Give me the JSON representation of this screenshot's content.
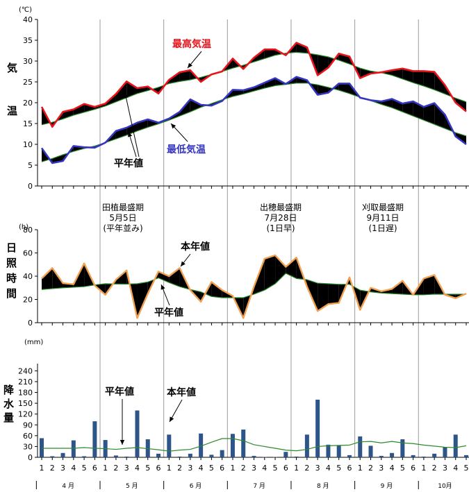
{
  "chart_data": [
    {
      "type": "line",
      "unit_label": "(℃)",
      "ylabel": "気温",
      "ylim": [
        0,
        40
      ],
      "yticks": [
        0,
        5,
        10,
        15,
        20,
        25,
        30,
        35,
        40
      ],
      "series": [
        {
          "name": "最高気温",
          "role": "actual",
          "color": "#e8141c",
          "values": [
            19,
            14.2,
            17.8,
            18.4,
            19.7,
            19,
            19.8,
            22.1,
            25.1,
            23.5,
            23.9,
            22.2,
            25.5,
            27.3,
            27.8,
            25,
            26.8,
            27.5,
            30.6,
            28.1,
            30.8,
            32.8,
            32.8,
            31.4,
            34.4,
            33.3,
            26.6,
            28.4,
            31.8,
            31.1,
            25.9,
            27,
            27.3,
            27.8,
            28.2,
            27.6,
            27.6,
            27.4,
            24.2,
            20,
            17.9
          ]
        },
        {
          "name": "",
          "role": "normal",
          "color": "#2a8a2a",
          "values": [
            14.7,
            15.3,
            16.1,
            17,
            17.7,
            18.4,
            19.2,
            20.2,
            21.2,
            22.2,
            22.9,
            23.7,
            24.6,
            25.1,
            25.5,
            26.1,
            26.8,
            27.5,
            28.3,
            29,
            29.8,
            30.6,
            31.4,
            31.9,
            32.1,
            31.9,
            31.5,
            31,
            30.2,
            29.3,
            28.3,
            27.6,
            27.2,
            26.6,
            25.7,
            24.8,
            24,
            23.1,
            22.1,
            21.1,
            20.2
          ]
        },
        {
          "name": "最低気温",
          "role": "actual",
          "color": "#3535c0",
          "values": [
            9.1,
            5.5,
            6,
            9.6,
            9.3,
            9.2,
            10.4,
            13.2,
            14,
            15.2,
            16,
            15.2,
            16.2,
            17.8,
            20.8,
            19.5,
            19.3,
            20.4,
            23.1,
            23,
            23.7,
            24.8,
            25.9,
            24.5,
            26.2,
            25.4,
            21.9,
            22.4,
            24.6,
            24.6,
            21.2,
            20.6,
            20.3,
            20.9,
            19.8,
            20.3,
            19,
            19.9,
            17.1,
            11.9,
            10
          ]
        },
        {
          "name": "",
          "role": "normal",
          "color": "#2a8a2a",
          "values": [
            5.8,
            6.6,
            7.5,
            8.3,
            9,
            9.6,
            10.4,
            11.3,
            12.2,
            13.2,
            14.1,
            14.9,
            15.8,
            16.8,
            17.8,
            18.9,
            19.8,
            20.7,
            21.5,
            22.1,
            22.8,
            23.5,
            24.1,
            24.4,
            24.7,
            24.7,
            24.3,
            23.7,
            23,
            22.2,
            21.3,
            20.5,
            19.6,
            18.8,
            17.8,
            16.8,
            15.8,
            14.8,
            13.8,
            12.8,
            12
          ]
        }
      ],
      "annotations": [
        {
          "text": "最高気温",
          "color": "#e8141c"
        },
        {
          "text": "最低気温",
          "color": "#3535c0"
        },
        {
          "text": "平年値",
          "color": "#000000"
        }
      ]
    },
    {
      "type": "line",
      "unit_label": "(h)",
      "ylabel": "日照時間",
      "ylim": [
        0,
        80
      ],
      "yticks": [
        0,
        20,
        40,
        60,
        80
      ],
      "series": [
        {
          "name": "本年値",
          "role": "actual",
          "color": "#f0a050",
          "values": [
            38,
            47,
            34,
            33,
            51,
            32,
            24,
            37,
            45,
            4,
            25,
            44,
            40,
            47,
            28,
            18,
            35,
            28,
            23,
            4,
            31,
            55,
            58,
            48,
            56,
            31,
            10,
            16,
            17,
            39,
            11,
            30,
            27,
            29,
            36,
            24,
            38,
            41,
            24,
            21,
            25
          ]
        },
        {
          "name": "平年値",
          "role": "normal",
          "color": "#2a8a2a",
          "values": [
            28.5,
            29.3,
            30,
            30.5,
            31,
            32.5,
            33.5,
            33.3,
            33.2,
            33.5,
            35,
            38.5,
            34.5,
            31,
            28.5,
            26.5,
            22.5,
            21.5,
            21.5,
            21.5,
            24.5,
            28,
            33.5,
            42.5,
            38,
            37,
            34,
            33.5,
            33,
            33,
            28,
            26.5,
            25.5,
            25,
            24.5,
            24,
            24,
            24.5,
            24.5,
            24.5,
            24.5
          ]
        }
      ],
      "stage_labels": [
        {
          "lines": [
            "田植最盛期",
            "5月5日",
            "(平年並み)"
          ]
        },
        {
          "lines": [
            "出穂最盛期",
            "7月28日",
            "(1日早)"
          ]
        },
        {
          "lines": [
            "刈取最盛期",
            "9月11日",
            "(1日遅)"
          ]
        }
      ],
      "annotations": [
        {
          "text": "本年値"
        },
        {
          "text": "平年値"
        }
      ]
    },
    {
      "type": "bar",
      "unit_label": "(mm)",
      "ylabel": "降水量",
      "ylim": [
        0,
        260
      ],
      "yticks": [
        0,
        30,
        60,
        90,
        120,
        150,
        180,
        210,
        240
      ],
      "series": [
        {
          "name": "本年値",
          "role": "actual",
          "color": "#2e5589",
          "values": [
            53,
            3,
            12,
            47,
            3,
            100,
            48,
            5,
            2,
            130,
            50,
            10,
            63,
            2,
            10,
            66,
            7,
            20,
            65,
            77,
            4,
            1,
            1,
            15,
            2,
            63,
            160,
            35,
            32,
            6,
            58,
            32,
            4,
            12,
            50,
            6,
            2,
            10,
            28,
            63,
            6
          ]
        },
        {
          "name": "平年値",
          "role": "normal",
          "color": "#2a8a2a",
          "values": [
            25,
            25,
            25,
            25,
            27,
            25,
            24,
            22,
            25,
            27,
            24,
            21,
            17,
            20,
            22,
            31,
            42,
            52,
            52,
            46,
            35,
            30,
            25,
            20,
            18,
            22,
            30,
            32,
            33,
            34,
            43,
            44,
            40,
            44,
            40,
            38,
            34,
            31,
            28,
            27,
            32
          ]
        }
      ],
      "annotations": [
        {
          "text": "平年値"
        },
        {
          "text": "本年値"
        }
      ]
    }
  ],
  "x_axis": {
    "half_month_labels": [
      "1",
      "2",
      "3",
      "4",
      "5",
      "6",
      "1",
      "2",
      "3",
      "4",
      "5",
      "6",
      "1",
      "2",
      "3",
      "4",
      "5",
      "6",
      "1",
      "2",
      "3",
      "4",
      "5",
      "6",
      "1",
      "2",
      "3",
      "4",
      "5",
      "6",
      "1",
      "2",
      "3",
      "4",
      "5",
      "6",
      "1",
      "2",
      "3",
      "4",
      "5"
    ],
    "months": [
      "4 月",
      "5 月",
      "6 月",
      "7 月",
      "8 月",
      "9 月",
      "10月"
    ]
  }
}
